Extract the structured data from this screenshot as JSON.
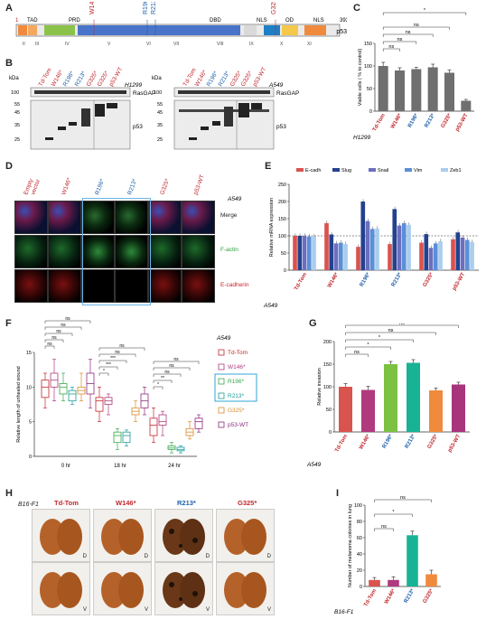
{
  "panel_labels": {
    "A": "A",
    "B": "B",
    "C": "C",
    "D": "D",
    "E": "E",
    "F": "F",
    "G": "G",
    "H": "H",
    "I": "I"
  },
  "panelA": {
    "first_residue": "1",
    "last_residue": "393",
    "protein": "p53",
    "domains": [
      "TAD",
      "PRD",
      "DBD",
      "NLS",
      "OD",
      "NLS"
    ],
    "exons": [
      "II",
      "III",
      "IV",
      "V",
      "VI",
      "VII",
      "VIII",
      "IX",
      "X",
      "XI"
    ],
    "mutations": [
      {
        "label": "W146*",
        "color": "#c0272d"
      },
      {
        "label": "R196*",
        "color": "#1c5fa8"
      },
      {
        "label": "R213*",
        "color": "#1c5fa8"
      },
      {
        "label": "G325*",
        "color": "#c0272d"
      }
    ]
  },
  "panelB": {
    "kda": "kDa",
    "blots": [
      {
        "cell_line": "H1299",
        "lanes": [
          "Td-Tom",
          "W146*",
          "R196*",
          "R213*",
          "G325*",
          "G325*",
          "p53-WT"
        ]
      },
      {
        "cell_line": "A549",
        "lanes": [
          "Td-Tom",
          "W146*",
          "R196*",
          "R213*",
          "G325*",
          "G325*",
          "p53-WT"
        ]
      }
    ],
    "markers_top": [
      "100"
    ],
    "markers_bottom": [
      "55",
      "45",
      "35",
      "25"
    ],
    "rows": [
      "RasGAP",
      "p53"
    ]
  },
  "panelC": {
    "chart_data": {
      "type": "bar",
      "categories": [
        "Td-Tom",
        "W146*",
        "R196*",
        "R213*",
        "G325*",
        "p53-WT"
      ],
      "values": [
        100,
        90,
        93,
        97,
        85,
        23
      ],
      "errors": [
        8,
        6,
        4,
        7,
        6,
        3
      ],
      "ylabel": "Viable cells ( % to control)",
      "ylim": [
        0,
        150
      ],
      "yticks": [
        0,
        50,
        100,
        150
      ],
      "cell_line": "H1299",
      "bar_color": "#6f6f6f",
      "significance": [
        "ns",
        "ns",
        "ns",
        "ns",
        "*"
      ]
    }
  },
  "panelD": {
    "conditions": [
      "Empty vector",
      "W146*",
      "R196*",
      "R213*",
      "G325*",
      "p53-WT"
    ],
    "cell_line": "A549",
    "rows": [
      "Merge",
      "F-actin",
      "E-cadherin"
    ]
  },
  "panelE": {
    "chart_data": {
      "type": "bar",
      "categories": [
        "Td-Tom",
        "W146*",
        "R196*",
        "R213*",
        "G325*",
        "p53-WT"
      ],
      "series": [
        {
          "name": "E-cadh",
          "color": "#d9534f",
          "values": [
            100,
            137,
            68,
            76,
            80,
            90
          ]
        },
        {
          "name": "Slug",
          "color": "#24418e",
          "values": [
            100,
            104,
            200,
            178,
            105,
            110
          ]
        },
        {
          "name": "Snail",
          "color": "#6b6fbf",
          "values": [
            100,
            78,
            143,
            130,
            65,
            95
          ]
        },
        {
          "name": "Vim",
          "color": "#5b8fd6",
          "values": [
            98,
            80,
            120,
            137,
            78,
            88
          ]
        },
        {
          "name": "Zeb1",
          "color": "#a9cdee",
          "values": [
            98,
            76,
            121,
            132,
            84,
            82
          ]
        }
      ],
      "ylabel": "Relative mRNA expression",
      "ylim": [
        0,
        250
      ],
      "yticks": [
        0,
        50,
        100,
        150,
        200,
        250
      ],
      "reference_line": 100,
      "cell_line": "A549"
    }
  },
  "panelF": {
    "chart_data": {
      "type": "box",
      "groups": [
        "0 hr",
        "18 hr",
        "24 hr"
      ],
      "series": [
        {
          "name": "Td-Tom",
          "color": "#c0272d",
          "boxes": [
            [
              7,
              8.5,
              10,
              11,
              12
            ],
            [
              5,
              6.5,
              8,
              8.5,
              10
            ],
            [
              2,
              3,
              4.5,
              5.5,
              7
            ]
          ]
        },
        {
          "name": "W146*",
          "color": "#b03a7e",
          "boxes": [
            [
              8,
              10,
              11,
              12,
              14
            ],
            [
              6,
              7.5,
              8,
              8.5,
              9
            ],
            [
              3,
              4.5,
              5,
              6,
              6.5
            ]
          ]
        },
        {
          "name": "R196*",
          "color": "#3aa84c",
          "boxes": [
            [
              8,
              9,
              10,
              10.5,
              12
            ],
            [
              1,
              2,
              3,
              3.5,
              4
            ],
            [
              0.5,
              1,
              1.2,
              1.5,
              2
            ]
          ]
        },
        {
          "name": "R213*",
          "color": "#1e9b9b",
          "boxes": [
            [
              7.5,
              8,
              9,
              9.5,
              10
            ],
            [
              1.5,
              2,
              3,
              3.5,
              3.8
            ],
            [
              0.5,
              0.8,
              1,
              1.3,
              1.5
            ]
          ]
        },
        {
          "name": "G325*",
          "color": "#d98b2b",
          "boxes": [
            [
              8,
              9,
              9.5,
              10,
              12
            ],
            [
              5,
              6,
              6.5,
              7,
              8
            ],
            [
              2.5,
              3,
              3.5,
              4,
              5
            ]
          ]
        },
        {
          "name": "p53-WT",
          "color": "#8e2a7e",
          "boxes": [
            [
              7,
              9,
              10.5,
              12,
              14
            ],
            [
              6,
              7,
              8,
              9,
              10
            ],
            [
              3.5,
              4,
              5,
              5.5,
              6
            ]
          ]
        }
      ],
      "ylabel": "Relative length of unhealed wound",
      "ylim": [
        0,
        15
      ],
      "yticks": [
        0,
        5,
        10,
        15
      ],
      "cell_line": "A549",
      "legend": [
        "Td-Tom",
        "W146*",
        "R196*",
        "R213*",
        "G325*",
        "p53-WT"
      ],
      "significance_0hr": [
        "ns",
        "ns",
        "ns",
        "ns",
        "ns"
      ],
      "significance_18hr": [
        "*",
        "***",
        "***",
        "ns",
        "ns"
      ],
      "significance_24hr": [
        "*",
        "**",
        "ns",
        "ns",
        "ns"
      ]
    }
  },
  "panelG": {
    "chart_data": {
      "type": "bar",
      "categories": [
        "Td-Tom",
        "W146*",
        "R196*",
        "R213*",
        "G325*",
        "p53-WT"
      ],
      "values": [
        100,
        93,
        150,
        153,
        92,
        105
      ],
      "errors": [
        7,
        8,
        6,
        7,
        5,
        5
      ],
      "colors": [
        "#d9534f",
        "#b03a7e",
        "#7cc142",
        "#18b394",
        "#f08a3d",
        "#a8347b"
      ],
      "ylabel": "Relative invasion",
      "ylim": [
        0,
        200
      ],
      "yticks": [
        0,
        50,
        100,
        150,
        200
      ],
      "cell_line": "A549",
      "significance": [
        "ns",
        "*",
        "*",
        "ns",
        "ns"
      ]
    }
  },
  "panelH": {
    "model": "B16-F1",
    "conditions": [
      "Td-Tom",
      "W146*",
      "R213*",
      "G325*"
    ],
    "views": [
      "D",
      "V"
    ]
  },
  "panelI": {
    "chart_data": {
      "type": "bar",
      "categories": [
        "Td-Tom",
        "W146*",
        "R213*",
        "G325*"
      ],
      "values": [
        8,
        8,
        63,
        15
      ],
      "errors": [
        3,
        4,
        5,
        5
      ],
      "colors": [
        "#d9534f",
        "#b03a7e",
        "#18b394",
        "#f08a3d"
      ],
      "ylabel": "Number of melanoma colonies in lung",
      "ylim": [
        0,
        100
      ],
      "yticks": [
        0,
        20,
        40,
        60,
        80,
        100
      ],
      "model": "B16-F1",
      "significance": [
        "ns",
        "*",
        "ns"
      ]
    }
  }
}
